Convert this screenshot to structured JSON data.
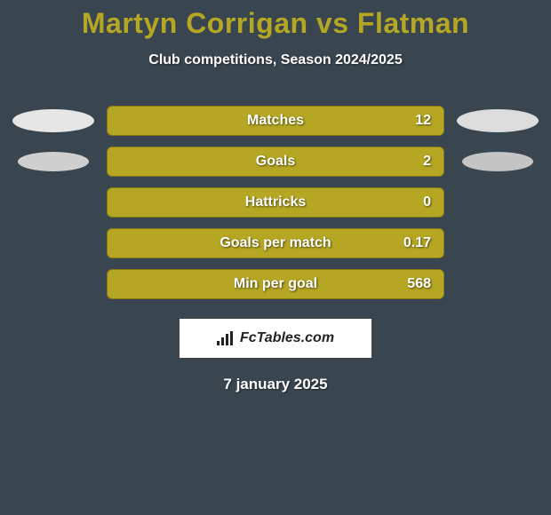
{
  "title": "Martyn Corrigan vs Flatman",
  "subtitle": "Club competitions, Season 2024/2025",
  "brand": "FcTables.com",
  "date": "7 january 2025",
  "colors": {
    "background": "#3a464f",
    "bar_fill": "#b5a723",
    "bar_border": "#857814",
    "title_color": "#b5a723",
    "text_color": "#ffffff",
    "pill_left_outer": "#e6e6e6",
    "pill_left_inner": "#cfcfcf",
    "pill_right_outer": "#dcdcdc",
    "pill_right_inner": "#c5c5c5"
  },
  "rows": [
    {
      "label": "Matches",
      "value": "12",
      "left_pill": "outer",
      "right_pill": "outer"
    },
    {
      "label": "Goals",
      "value": "2",
      "left_pill": "inner",
      "right_pill": "inner"
    },
    {
      "label": "Hattricks",
      "value": "0",
      "left_pill": null,
      "right_pill": null
    },
    {
      "label": "Goals per match",
      "value": "0.17",
      "left_pill": null,
      "right_pill": null
    },
    {
      "label": "Min per goal",
      "value": "568",
      "left_pill": null,
      "right_pill": null
    }
  ]
}
